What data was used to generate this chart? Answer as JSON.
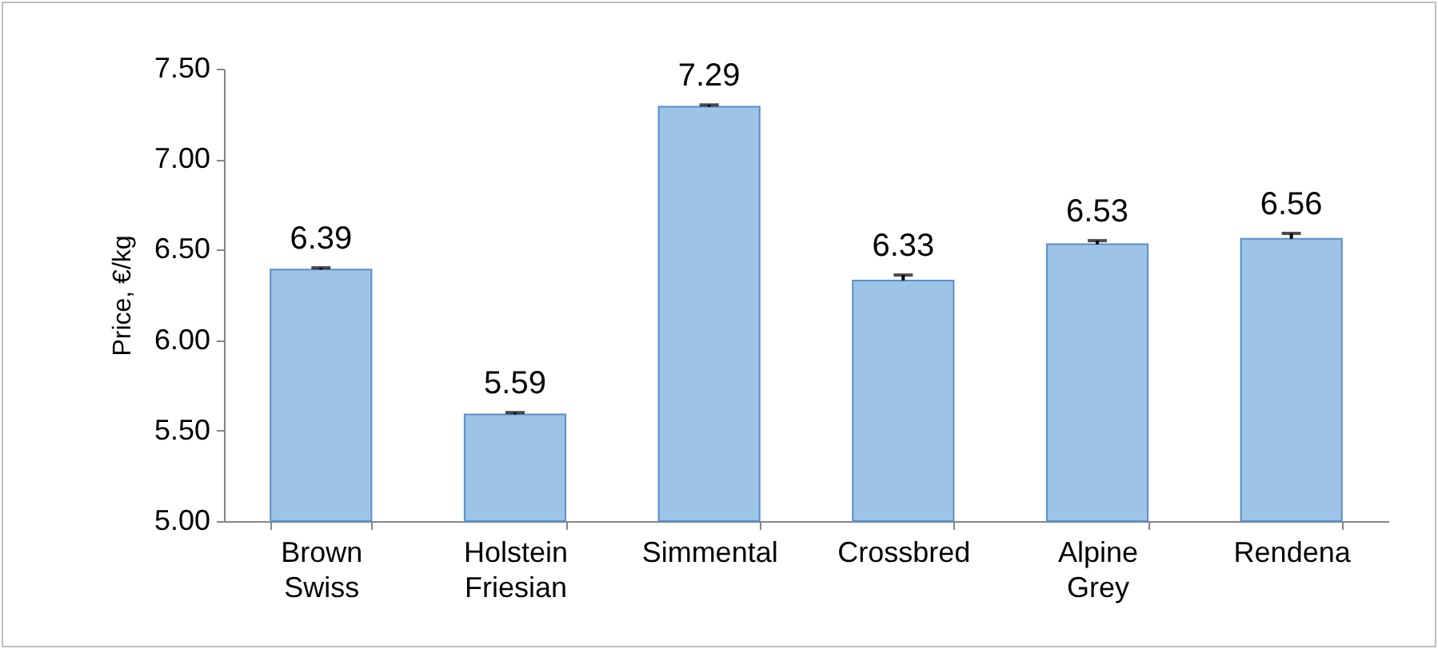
{
  "chart_data": {
    "type": "bar",
    "ylabel": "Price, €/kg",
    "categories": [
      "Brown Swiss",
      "Holstein Friesian",
      "Simmental",
      "Crossbred",
      "Alpine Grey",
      "Rendena"
    ],
    "values": [
      6.39,
      5.59,
      7.29,
      6.33,
      6.53,
      6.56
    ],
    "errors": [
      [
        6.39,
        6.4
      ],
      [
        5.59,
        5.6
      ],
      [
        7.29,
        7.3
      ],
      [
        6.33,
        6.36
      ],
      [
        6.53,
        6.55
      ],
      [
        6.56,
        6.59
      ]
    ],
    "color": "#9dc3e6",
    "ylim": [
      5,
      7.5
    ],
    "yticks": [
      {
        "value": 5,
        "label": "5.00"
      },
      {
        "value": 5.5,
        "label": "5.50"
      },
      {
        "value": 6,
        "label": "6.00"
      },
      {
        "value": 6.5,
        "label": "6.50"
      },
      {
        "value": 7,
        "label": "7.00"
      },
      {
        "value": 7.5,
        "label": "7.50"
      }
    ],
    "data_labels": true,
    "grid": false
  }
}
